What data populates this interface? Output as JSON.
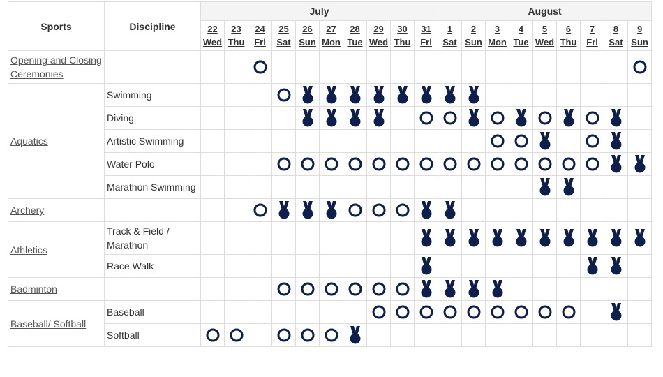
{
  "header": {
    "sports": "Sports",
    "discipline": "Discipline"
  },
  "months": [
    {
      "name": "July",
      "days": [
        {
          "date": "22",
          "weekday": "Wed"
        },
        {
          "date": "23",
          "weekday": "Thu"
        },
        {
          "date": "24",
          "weekday": "Fri"
        },
        {
          "date": "25",
          "weekday": "Sat"
        },
        {
          "date": "26",
          "weekday": "Sun"
        },
        {
          "date": "27",
          "weekday": "Mon"
        },
        {
          "date": "28",
          "weekday": "Tue"
        },
        {
          "date": "29",
          "weekday": "Wed"
        },
        {
          "date": "30",
          "weekday": "Thu"
        },
        {
          "date": "31",
          "weekday": "Fri"
        }
      ]
    },
    {
      "name": "August",
      "days": [
        {
          "date": "1",
          "weekday": "Sat"
        },
        {
          "date": "2",
          "weekday": "Sun"
        },
        {
          "date": "3",
          "weekday": "Mon"
        },
        {
          "date": "4",
          "weekday": "Tue"
        },
        {
          "date": "5",
          "weekday": "Wed"
        },
        {
          "date": "6",
          "weekday": "Thu"
        },
        {
          "date": "7",
          "weekday": "Fri"
        },
        {
          "date": "8",
          "weekday": "Sat"
        },
        {
          "date": "9",
          "weekday": "Sun"
        }
      ]
    }
  ],
  "sports": [
    {
      "name": "Opening and Closing Ceremonies",
      "disciplines": [
        {
          "schedule": [
            null,
            null,
            "event",
            null,
            null,
            null,
            null,
            null,
            null,
            null,
            null,
            null,
            null,
            null,
            null,
            null,
            null,
            null,
            "event"
          ]
        }
      ]
    },
    {
      "name": "Aquatics",
      "disciplines": [
        {
          "name": "Swimming",
          "schedule": [
            null,
            null,
            null,
            "event",
            "medal",
            "medal",
            "medal",
            "medal",
            "medal",
            "medal",
            "medal",
            "medal",
            null,
            null,
            null,
            null,
            null,
            null,
            null
          ]
        },
        {
          "name": "Diving",
          "schedule": [
            null,
            null,
            null,
            null,
            "medal",
            "medal",
            "medal",
            "medal",
            null,
            "event",
            "event",
            "medal",
            "event",
            "medal",
            "event",
            "medal",
            "event",
            "medal",
            null
          ]
        },
        {
          "name": "Artistic Swimming",
          "schedule": [
            null,
            null,
            null,
            null,
            null,
            null,
            null,
            null,
            null,
            null,
            null,
            null,
            "event",
            "event",
            "medal",
            null,
            "event",
            "medal",
            null
          ]
        },
        {
          "name": "Water Polo",
          "schedule": [
            null,
            null,
            null,
            "event",
            "event",
            "event",
            "event",
            "event",
            "event",
            "event",
            "event",
            "event",
            "event",
            "event",
            "event",
            "event",
            "event",
            "medal",
            "medal"
          ]
        },
        {
          "name": "Marathon Swimming",
          "schedule": [
            null,
            null,
            null,
            null,
            null,
            null,
            null,
            null,
            null,
            null,
            null,
            null,
            null,
            null,
            "medal",
            "medal",
            null,
            null,
            null
          ]
        }
      ]
    },
    {
      "name": "Archery",
      "disciplines": [
        {
          "schedule": [
            null,
            null,
            "event",
            "medal",
            "medal",
            "medal",
            "event",
            "event",
            "event",
            "medal",
            "medal",
            null,
            null,
            null,
            null,
            null,
            null,
            null,
            null
          ]
        }
      ]
    },
    {
      "name": "Athletics",
      "disciplines": [
        {
          "name": "Track & Field / Marathon",
          "schedule": [
            null,
            null,
            null,
            null,
            null,
            null,
            null,
            null,
            null,
            "medal",
            "medal",
            "medal",
            "medal",
            "medal",
            "medal",
            "medal",
            "medal",
            "medal",
            "medal"
          ]
        },
        {
          "name": "Race Walk",
          "schedule": [
            null,
            null,
            null,
            null,
            null,
            null,
            null,
            null,
            null,
            "medal",
            null,
            null,
            null,
            null,
            null,
            null,
            "medal",
            "medal",
            null
          ]
        }
      ]
    },
    {
      "name": "Badminton",
      "disciplines": [
        {
          "schedule": [
            null,
            null,
            null,
            "event",
            "event",
            "event",
            "event",
            "event",
            "event",
            "medal",
            "medal",
            "medal",
            "medal",
            null,
            null,
            null,
            null,
            null,
            null
          ]
        }
      ]
    },
    {
      "name": "Baseball/ Softball",
      "disciplines": [
        {
          "name": "Baseball",
          "schedule": [
            null,
            null,
            null,
            null,
            null,
            null,
            null,
            "event",
            "event",
            "event",
            "event",
            "event",
            "event",
            "event",
            "event",
            "event",
            null,
            "medal",
            null
          ]
        },
        {
          "name": "Softball",
          "schedule": [
            "event",
            "event",
            null,
            "event",
            "event",
            "event",
            "medal",
            null,
            null,
            null,
            null,
            null,
            null,
            null,
            null,
            null,
            null,
            null,
            null
          ]
        }
      ]
    }
  ]
}
